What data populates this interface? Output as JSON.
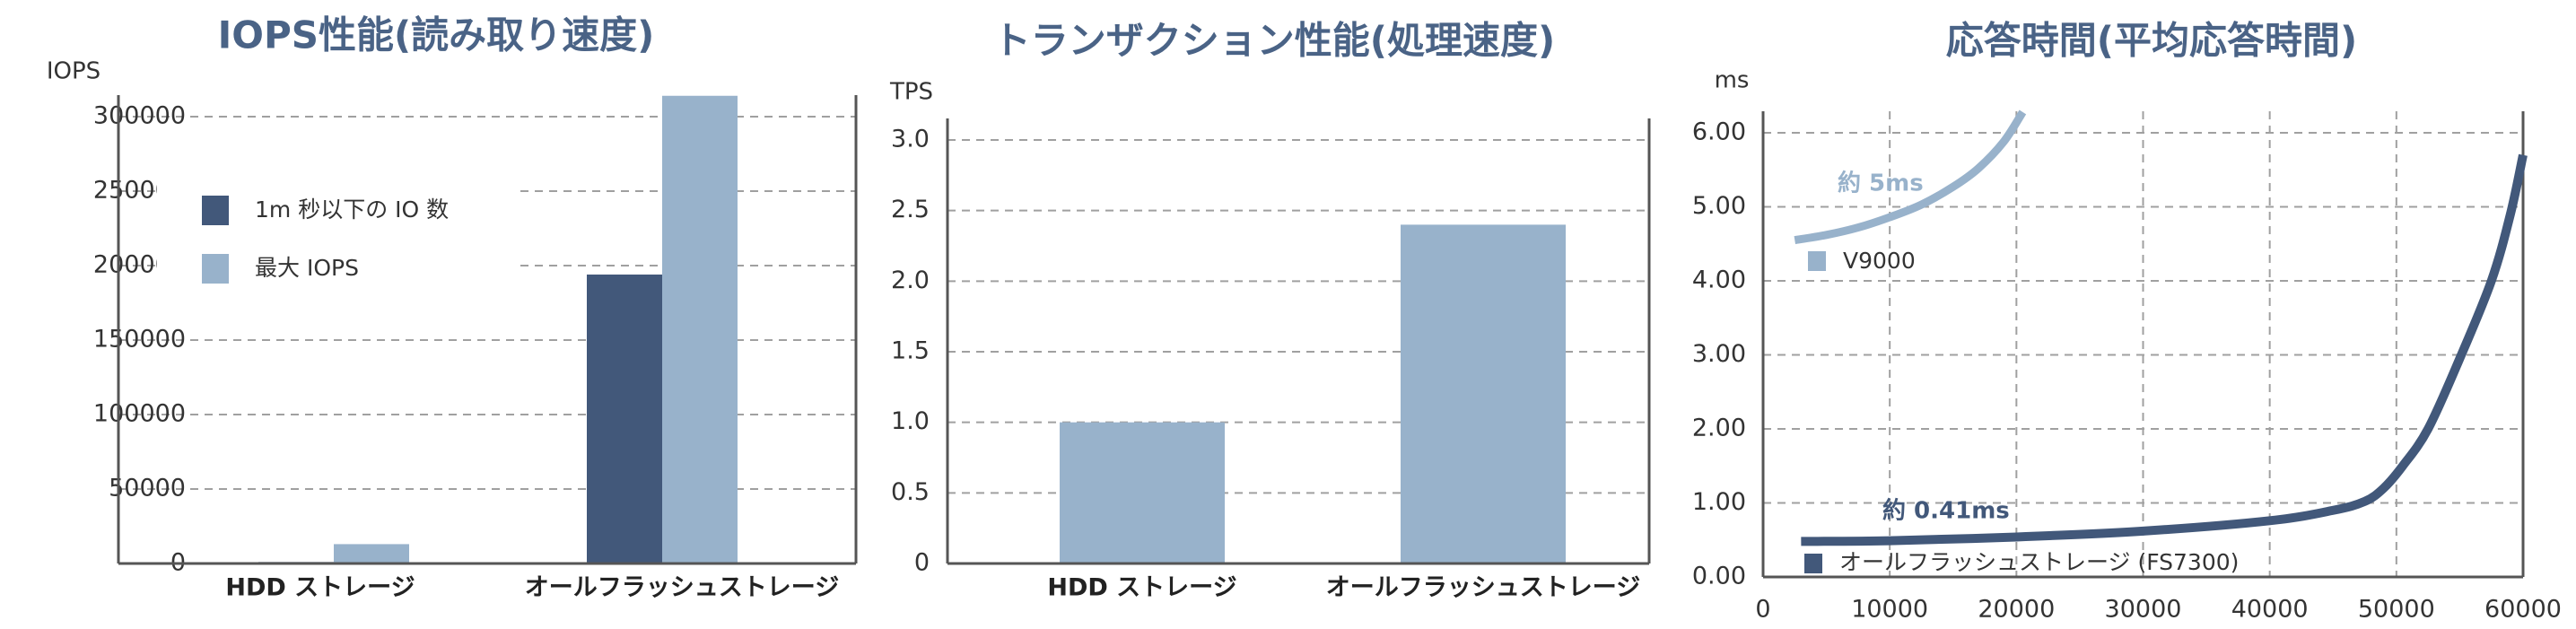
{
  "colors": {
    "dark": "#42587a",
    "light": "#98b2cb",
    "title": "#4a6386",
    "grid": "#a0a0a0",
    "axis": "#555555"
  },
  "chart_data": [
    {
      "type": "bar",
      "title": "IOPS性能(読み取り速度)",
      "ylabel": "IOPS",
      "xlabel": "",
      "categories": [
        "HDD ストレージ",
        "オールフラッシュストレージ"
      ],
      "series": [
        {
          "name": "1m 秒以下の IO 数",
          "values": [
            1000,
            194000
          ]
        },
        {
          "name": "最大 IOPS",
          "values": [
            13000,
            314000
          ]
        }
      ],
      "ylim": [
        0,
        300000
      ],
      "yticks": [
        "0",
        "50000",
        "100000",
        "150000",
        "200000",
        "250000",
        "300000"
      ],
      "ytick_values": [
        0,
        50000,
        100000,
        150000,
        200000,
        250000,
        300000
      ],
      "grid": true,
      "legend": "upper-left"
    },
    {
      "type": "bar",
      "title": "トランザクション性能(処理速度)",
      "ylabel": "TPS",
      "xlabel": "",
      "categories": [
        "HDD ストレージ",
        "オールフラッシュストレージ"
      ],
      "values": [
        1.0,
        2.4
      ],
      "ylim": [
        0,
        3.0
      ],
      "yticks": [
        "0",
        "0.5",
        "1.0",
        "1.5",
        "2.0",
        "2.5",
        "3.0"
      ],
      "ytick_values": [
        0,
        0.5,
        1.0,
        1.5,
        2.0,
        2.5,
        3.0
      ],
      "grid": true
    },
    {
      "type": "line",
      "title": "応答時間(平均応答時間)",
      "ylabel": "ms",
      "xlabel": "",
      "xlim": [
        0,
        60000
      ],
      "ylim": [
        0,
        6.0
      ],
      "xticks": [
        "0",
        "10000",
        "20000",
        "30000",
        "40000",
        "50000",
        "60000"
      ],
      "xtick_values": [
        0,
        10000,
        20000,
        30000,
        40000,
        50000,
        60000
      ],
      "yticks": [
        "0.00",
        "1.00",
        "2.00",
        "3.00",
        "4.00",
        "5.00",
        "6.00"
      ],
      "ytick_values": [
        0,
        1,
        2,
        3,
        4,
        5,
        6
      ],
      "grid": true,
      "series": [
        {
          "name": "V9000",
          "color": "light",
          "x": [
            2500,
            5000,
            7500,
            10000,
            12500,
            15000,
            17000,
            19000,
            20500
          ],
          "y": [
            4.55,
            4.62,
            4.72,
            4.86,
            5.03,
            5.27,
            5.52,
            5.88,
            6.28
          ]
        },
        {
          "name": "オールフラッシュストレージ (FS7300)",
          "color": "dark",
          "x": [
            3000,
            10000,
            20000,
            30000,
            40000,
            45000,
            47500,
            49000,
            50500,
            52500,
            55000,
            57500,
            59000,
            60000
          ],
          "y": [
            0.48,
            0.49,
            0.54,
            0.62,
            0.76,
            0.9,
            1.02,
            1.2,
            1.5,
            2.0,
            2.95,
            4.0,
            4.9,
            5.7
          ]
        }
      ],
      "annotations": [
        {
          "text": "約 5ms",
          "series": "V9000"
        },
        {
          "text": "約 0.41ms",
          "series": "オールフラッシュストレージ (FS7300)"
        }
      ]
    }
  ]
}
